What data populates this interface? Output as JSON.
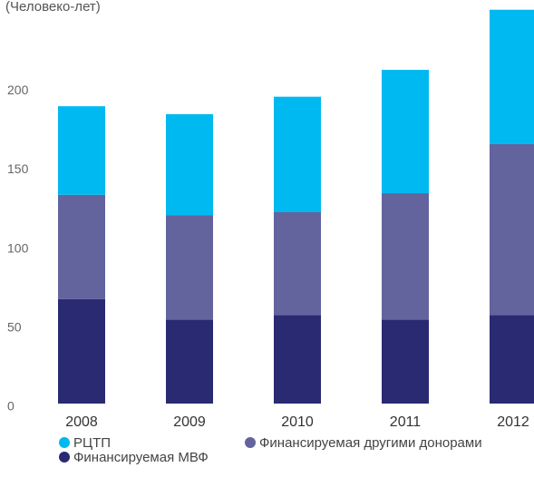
{
  "chart_data": {
    "type": "stacked_bar",
    "title": "(Человеко-лет)",
    "categories": [
      "2008",
      "2009",
      "2010",
      "2011",
      "2012"
    ],
    "series": [
      {
        "name": "РЦТП",
        "color": "#00b9f0",
        "values": [
          56,
          64,
          73,
          78,
          85
        ]
      },
      {
        "name": "Финансируемая другими донорами",
        "color": "#63639e",
        "values": [
          66,
          66,
          65,
          80,
          108
        ]
      },
      {
        "name": "Финансируемая МВФ",
        "color": "#2a2a72",
        "values": [
          66,
          53,
          56,
          53,
          56
        ]
      }
    ],
    "ylim": [
      0,
      250
    ],
    "yticks": [
      0,
      50,
      100,
      150,
      200
    ]
  }
}
